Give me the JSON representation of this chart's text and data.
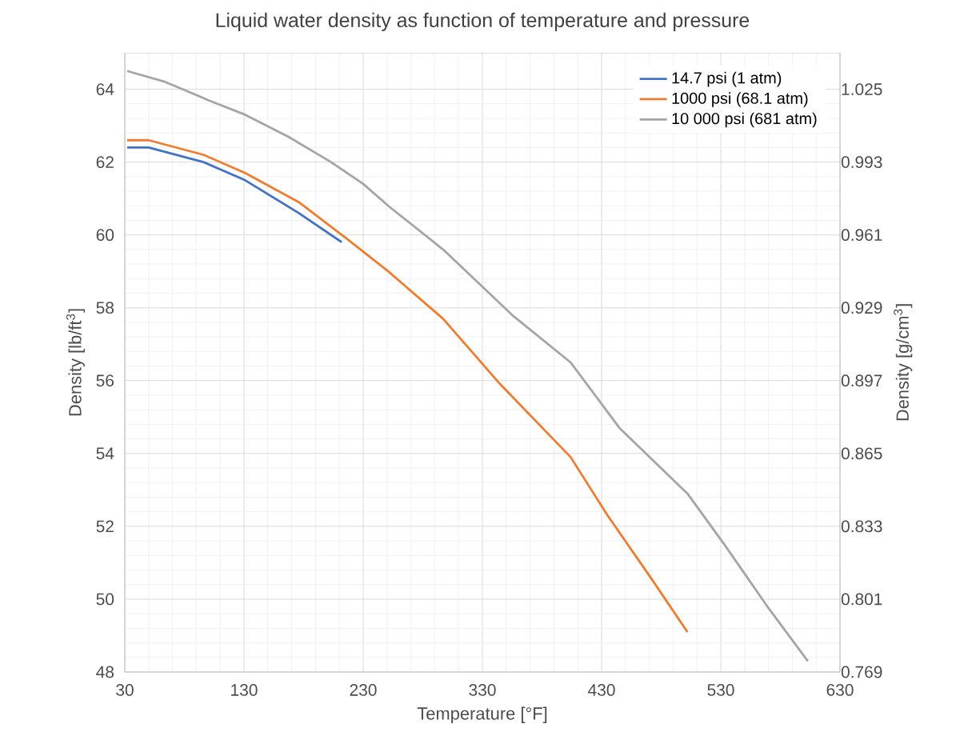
{
  "chart_data": {
    "type": "line",
    "title": "Liquid water density as function of temperature and pressure",
    "xlabel": "Temperature  [°F]",
    "ylabel": "Density  [lb/ft$^{3}$]",
    "y2label": "Density [g/cm$^{3}$]",
    "xlim": [
      30,
      630
    ],
    "xticks": [
      30,
      130,
      230,
      330,
      430,
      530,
      630
    ],
    "ylim": [
      48,
      65
    ],
    "yticks": [
      48,
      50,
      52,
      54,
      56,
      58,
      60,
      62,
      64
    ],
    "y2lim": [
      0.769,
      1.041
    ],
    "y2ticks": [
      0.769,
      0.801,
      0.833,
      0.865,
      0.897,
      0.929,
      0.961,
      0.993,
      1.025
    ],
    "grid": true,
    "legend": "top right",
    "series": [
      {
        "name": "14.7 psi (1 atm)",
        "color": "#4472c4",
        "x": [
          32,
          50,
          96,
          131,
          176,
          212
        ],
        "values": [
          62.4,
          62.4,
          62.0,
          61.5,
          60.6,
          59.8
        ]
      },
      {
        "name": "1000 psi (68.1 atm)",
        "color": "#ed7d31",
        "x": [
          32,
          50,
          96,
          131,
          176,
          216,
          251,
          297,
          345,
          404,
          435,
          471,
          502
        ],
        "values": [
          62.6,
          62.6,
          62.2,
          61.7,
          60.9,
          59.9,
          59.0,
          57.7,
          55.9,
          53.9,
          52.3,
          50.6,
          49.1
        ]
      },
      {
        "name": "10 000 psi (681 atm)",
        "color": "#a5a5a5",
        "x": [
          32,
          64,
          100,
          131,
          167,
          203,
          230,
          251,
          297,
          355,
          404,
          445,
          502,
          533,
          569,
          603
        ],
        "values": [
          64.5,
          64.2,
          63.7,
          63.3,
          62.7,
          62.0,
          61.4,
          60.8,
          59.6,
          57.8,
          56.5,
          54.7,
          52.9,
          51.5,
          49.8,
          48.3
        ]
      }
    ]
  }
}
